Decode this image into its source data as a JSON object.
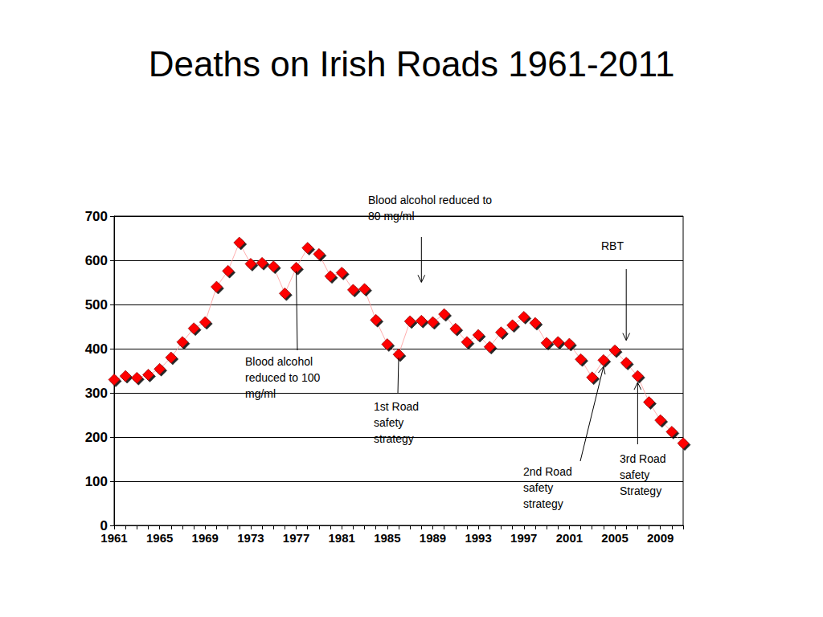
{
  "chart_data": {
    "type": "line",
    "title": "Deaths on Irish Roads 1961-2011",
    "x": [
      1961,
      1962,
      1963,
      1964,
      1965,
      1966,
      1967,
      1968,
      1969,
      1970,
      1971,
      1972,
      1973,
      1974,
      1975,
      1976,
      1977,
      1978,
      1979,
      1980,
      1981,
      1982,
      1983,
      1984,
      1985,
      1986,
      1987,
      1988,
      1989,
      1990,
      1991,
      1992,
      1993,
      1994,
      1995,
      1996,
      1997,
      1998,
      1999,
      2000,
      2001,
      2002,
      2003,
      2004,
      2005,
      2006,
      2007,
      2008,
      2009,
      2010,
      2011
    ],
    "values": [
      330,
      338,
      334,
      341,
      354,
      380,
      415,
      446,
      460,
      540,
      576,
      640,
      592,
      594,
      586,
      525,
      583,
      628,
      614,
      564,
      572,
      533,
      535,
      465,
      410,
      387,
      462,
      463,
      460,
      478,
      445,
      415,
      431,
      404,
      437,
      453,
      472,
      458,
      413,
      415,
      411,
      376,
      335,
      374,
      396,
      368,
      338,
      279,
      238,
      212,
      186
    ],
    "color": "#ff0000",
    "marker": "diamond",
    "xlim": [
      1961,
      2011
    ],
    "xticks": [
      1961,
      1965,
      1969,
      1973,
      1977,
      1981,
      1985,
      1989,
      1993,
      1997,
      2001,
      2005,
      2009
    ],
    "ylim": [
      0,
      700
    ],
    "yticks": [
      0,
      100,
      200,
      300,
      400,
      500,
      600,
      700
    ],
    "grid": true,
    "annotations": [
      {
        "text": [
          "Blood alcohol",
          "reduced to 100",
          "mg/ml"
        ],
        "x": 1977
      },
      {
        "text": [
          "1st Road",
          "safety",
          "strategy"
        ],
        "x": 1986
      },
      {
        "text": [
          "Blood alcohol reduced to",
          "80 mg/ml"
        ],
        "x": 1988
      },
      {
        "text": [
          "RBT"
        ],
        "x": 2006
      },
      {
        "text": [
          "2nd Road",
          "safety",
          "strategy"
        ],
        "x": 2004
      },
      {
        "text": [
          "3rd Road",
          "safety",
          "Strategy"
        ],
        "x": 2007
      }
    ]
  }
}
